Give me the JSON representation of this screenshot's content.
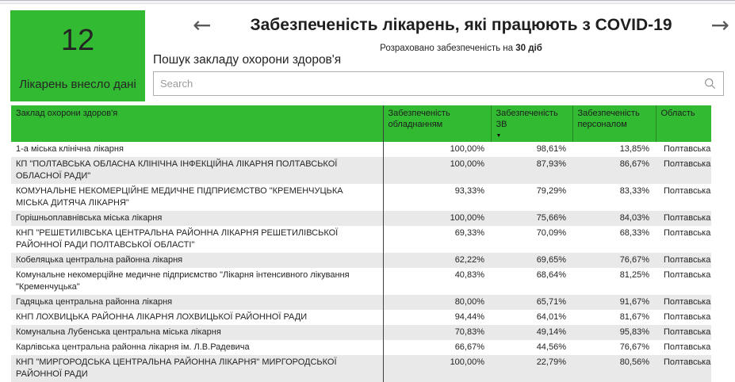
{
  "page": {
    "title": "Забезпеченість лікарень, які працюють з COVID-19",
    "subtitle_prefix": "Розраховано забезпеченість на ",
    "subtitle_bold": "30 діб",
    "nav_prev": "←",
    "nav_next": "→"
  },
  "kpi_card": {
    "value": "12",
    "label": "Лікарень внесло дані"
  },
  "search": {
    "label": "Пошук закладу охорони здоров'я",
    "placeholder": "Search"
  },
  "table": {
    "sort_icon": "▼",
    "columns": [
      {
        "label": "Заклад охорони здоров'я"
      },
      {
        "label": "Забезпеченість обладнанням"
      },
      {
        "label": "Забезпеченість ЗВ",
        "sort": "desc"
      },
      {
        "label": "Забезпеченість персоналом"
      },
      {
        "label": "Область"
      }
    ],
    "rows": [
      {
        "name": "1-а міська клінічна лікарня",
        "equipment": "100,00%",
        "protective": "98,61%",
        "staff": "13,85%",
        "region": "Полтавська"
      },
      {
        "name": "КП \"ПОЛТАВСЬКА ОБЛАСНА КЛІНІЧНА ІНФЕКЦІЙНА ЛІКАРНЯ ПОЛТАВСЬКОЇ ОБЛАСНОЇ РАДИ\"",
        "equipment": "100,00%",
        "protective": "87,93%",
        "staff": "86,67%",
        "region": "Полтавська"
      },
      {
        "name": "КОМУНАЛЬНЕ НЕКОМЕРЦІЙНЕ МЕДИЧНЕ ПІДПРИЄМСТВО \"КРЕМЕНЧУЦЬКА МІСЬКА ДИТЯЧА ЛІКАРНЯ\"",
        "equipment": "93,33%",
        "protective": "79,29%",
        "staff": "83,33%",
        "region": "Полтавська"
      },
      {
        "name": "Горішньоплавнівська міська лікарня",
        "equipment": "100,00%",
        "protective": "75,66%",
        "staff": "84,03%",
        "region": "Полтавська"
      },
      {
        "name": "КНП \"РЕШЕТИЛІВСЬКА ЦЕНТРАЛЬНА РАЙОННА ЛІКАРНЯ РЕШЕТИЛІВСЬКОЇ РАЙОННОЇ РАДИ ПОЛТАВСЬКОЇ ОБЛАСТІ\"",
        "equipment": "69,33%",
        "protective": "70,09%",
        "staff": "68,33%",
        "region": "Полтавська"
      },
      {
        "name": "Кобеляцька центральна районна лікарня",
        "equipment": "62,22%",
        "protective": "69,65%",
        "staff": "76,67%",
        "region": "Полтавська"
      },
      {
        "name": "Комунальне некомерційне медичне підприємство \"Лікарня інтенсивного лікування \"Кременчуцька\"",
        "equipment": "40,83%",
        "protective": "68,64%",
        "staff": "81,25%",
        "region": "Полтавська"
      },
      {
        "name": "Гадяцька центральна районна лікарня",
        "equipment": "80,00%",
        "protective": "65,71%",
        "staff": "91,67%",
        "region": "Полтавська"
      },
      {
        "name": "КНП ЛОХВИЦЬКА РАЙОННА ЛІКАРНЯ ЛОХВИЦЬКОЇ РАЙОННОЇ РАДИ",
        "equipment": "94,44%",
        "protective": "64,01%",
        "staff": "81,67%",
        "region": "Полтавська"
      },
      {
        "name": "Комунальна Лубенська центральна міська лікарня",
        "equipment": "70,83%",
        "protective": "49,14%",
        "staff": "95,83%",
        "region": "Полтавська"
      },
      {
        "name": "Карлівська центральна районна лікарня ім. Л.В.Радевича",
        "equipment": "66,67%",
        "protective": "44,56%",
        "staff": "76,67%",
        "region": "Полтавська"
      },
      {
        "name": "КНП \"МИРГОРОДСЬКА ЦЕНТРАЛЬНА РАЙОННА ЛІКАРНЯ\" МИРГОРОДСЬКОЇ РАЙОННОЇ РАДИ",
        "equipment": "100,00%",
        "protective": "22,79%",
        "staff": "80,56%",
        "region": "Полтавська"
      }
    ]
  },
  "colors": {
    "accent_green": "#33ba33",
    "row_alt": "#e9e9e9",
    "body_text": "#252423",
    "header_text": "#1d1d1d",
    "divider_dark": "#3f3f3f"
  }
}
